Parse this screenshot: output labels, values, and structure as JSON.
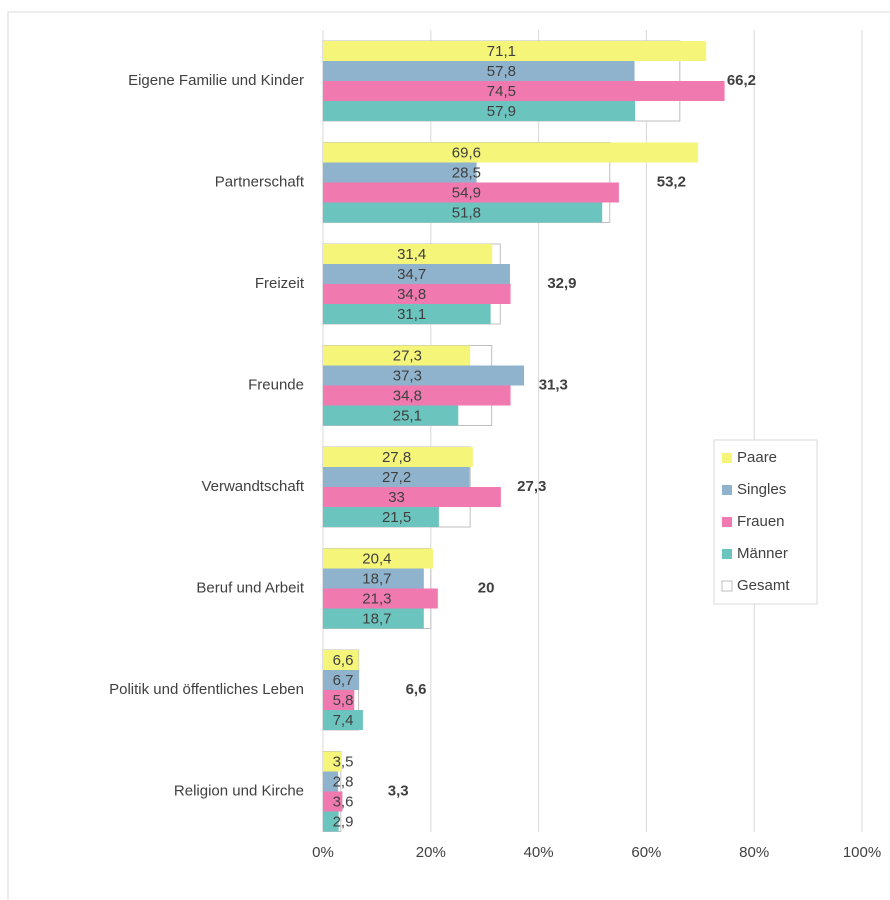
{
  "chart_data": {
    "type": "grouped-bar-horizontal",
    "categories": [
      "Eigene Familie und Kinder",
      "Partnerschaft",
      "Freizeit",
      "Freunde",
      "Verwandtschaft",
      "Beruf und Arbeit",
      "Politik und öffentliches Leben",
      "Religion und Kirche"
    ],
    "series": [
      {
        "name": "Paare",
        "color": "#f5f57a",
        "values": [
          71.1,
          69.6,
          31.4,
          27.3,
          27.8,
          20.4,
          6.6,
          3.5
        ],
        "value_labels": [
          "71,1",
          "69,6",
          "31,4",
          "27,3",
          "27,8",
          "20,4",
          "6,6",
          "3,5"
        ]
      },
      {
        "name": "Singles",
        "color": "#8fb3cc",
        "values": [
          57.8,
          28.5,
          34.7,
          37.3,
          27.2,
          18.7,
          6.7,
          2.8
        ],
        "value_labels": [
          "57,8",
          "28,5",
          "34,7",
          "37,3",
          "27,2",
          "18,7",
          "6,7",
          "2,8"
        ]
      },
      {
        "name": "Frauen",
        "color": "#f07ab0",
        "values": [
          74.5,
          54.9,
          34.8,
          34.8,
          33,
          21.3,
          5.8,
          3.6
        ],
        "value_labels": [
          "74,5",
          "54,9",
          "34,8",
          "34,8",
          "33",
          "21,3",
          "5,8",
          "3,6"
        ]
      },
      {
        "name": "Männer",
        "color": "#6cc4bf",
        "values": [
          57.9,
          51.8,
          31.1,
          25.1,
          21.5,
          18.7,
          7.4,
          2.9
        ],
        "value_labels": [
          "57,9",
          "51,8",
          "31,1",
          "25,1",
          "21,5",
          "18,7",
          "7,4",
          "2,9"
        ]
      },
      {
        "name": "Gesamt",
        "color": "#ffffff",
        "outline": true,
        "values": [
          66.2,
          53.2,
          32.9,
          31.3,
          27.3,
          20,
          6.6,
          3.3
        ],
        "value_labels": [
          "66,2",
          "53,2",
          "32,9",
          "31,3",
          "27,3",
          "20",
          "6,6",
          "3,3"
        ]
      }
    ],
    "xlim": [
      0,
      100
    ],
    "xticks": [
      {
        "value": 0,
        "label": "0%"
      },
      {
        "value": 20,
        "label": "20%"
      },
      {
        "value": 40,
        "label": "40%"
      },
      {
        "value": 60,
        "label": "60%"
      },
      {
        "value": 80,
        "label": "80%"
      },
      {
        "value": 100,
        "label": "100%"
      }
    ],
    "grid": true,
    "legend": "right"
  }
}
